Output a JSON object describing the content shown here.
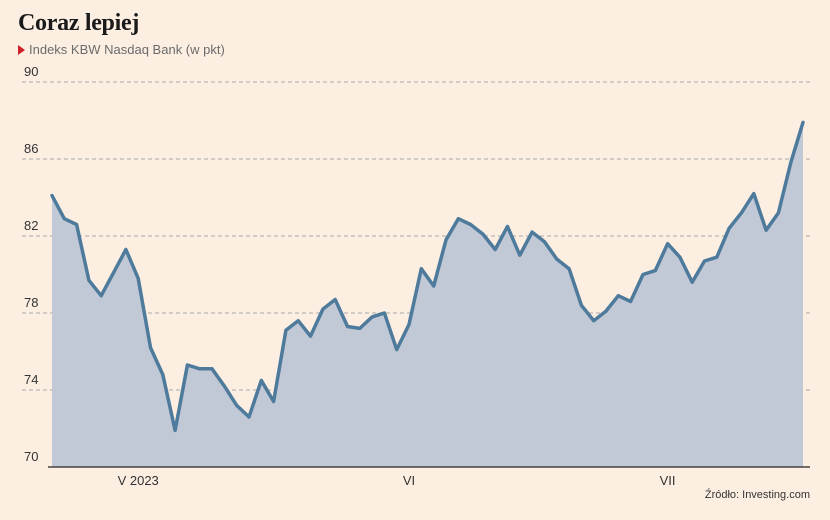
{
  "header": {
    "title": "Coraz lepiej",
    "subtitle": "Indeks KBW Nasdaq Bank (w pkt)"
  },
  "footer": {
    "source": "Źródło: Investing.com"
  },
  "colors": {
    "background": "#fcefe2",
    "line": "#4e7a9b",
    "area": "#c1c8d6",
    "grid": "#aaaaaa",
    "marker": "#d0202a"
  },
  "chart_data": {
    "type": "area",
    "title": "Coraz lepiej",
    "subtitle": "Indeks KBW Nasdaq Bank (w pkt)",
    "xlabel": "",
    "ylabel": "",
    "ylim": [
      70,
      90
    ],
    "yticks": [
      70,
      74,
      78,
      82,
      86,
      90
    ],
    "grid": true,
    "x_tick_labels": [
      {
        "label": "V 2023",
        "index": 7
      },
      {
        "label": "VI",
        "index": 29
      },
      {
        "label": "VII",
        "index": 50
      }
    ],
    "series": [
      {
        "values": [
          84.1,
          82.9,
          82.6,
          79.7,
          78.9,
          80.1,
          81.3,
          79.8,
          76.2,
          74.8,
          71.9,
          75.3,
          75.1,
          75.1,
          74.2,
          73.2,
          72.6,
          74.5,
          73.4,
          77.1,
          77.6,
          76.8,
          78.2,
          78.7,
          77.3,
          77.2,
          77.8,
          78.0,
          76.1,
          77.4,
          80.3,
          79.4,
          81.8,
          82.9,
          82.6,
          82.1,
          81.3,
          82.5,
          81.0,
          82.2,
          81.7,
          80.8,
          80.3,
          78.4,
          77.6,
          78.1,
          78.9,
          78.6,
          80.0,
          80.2,
          81.6,
          80.9,
          79.6,
          80.7,
          80.9,
          82.4,
          83.2,
          84.2,
          82.3,
          83.2,
          85.8,
          87.9
        ]
      }
    ]
  }
}
